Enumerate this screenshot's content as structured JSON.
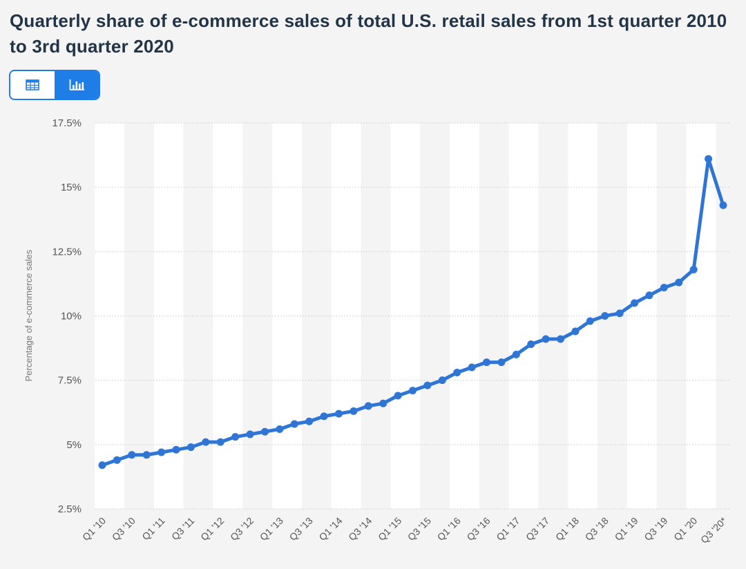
{
  "page": {
    "title": "Quarterly share of e-commerce sales of total U.S. retail sales from 1st quarter 2010 to 3rd quarter 2020"
  },
  "view_toggle": {
    "options": [
      {
        "name": "table-view",
        "icon": "table-icon",
        "active": false
      },
      {
        "name": "chart-view",
        "icon": "bar-chart-icon",
        "active": true
      }
    ]
  },
  "colors": {
    "line": "#2e75d6",
    "accent": "#1f7de8",
    "band": "#ffffff",
    "background": "#f4f4f4",
    "grid": "#c7c7c7",
    "tick_text": "#555555"
  },
  "chart_data": {
    "type": "line",
    "title": "Quarterly share of e-commerce sales of total U.S. retail sales from 1st quarter 2010 to 3rd quarter 2020",
    "xlabel": "",
    "ylabel": "Percentage of e-commerce sales",
    "ylim": [
      2.5,
      17.5
    ],
    "yticks": [
      2.5,
      5,
      7.5,
      10,
      12.5,
      15,
      17.5
    ],
    "ytick_labels": [
      "2.5%",
      "5%",
      "7.5%",
      "10%",
      "12.5%",
      "15%",
      "17.5%"
    ],
    "grid": true,
    "categories": [
      "Q1 '10",
      "Q2 '10",
      "Q3 '10",
      "Q4 '10",
      "Q1 '11",
      "Q2 '11",
      "Q3 '11",
      "Q4 '11",
      "Q1 '12",
      "Q2 '12",
      "Q3 '12",
      "Q4 '12",
      "Q1 '13",
      "Q2 '13",
      "Q3 '13",
      "Q4 '13",
      "Q1 '14",
      "Q2 '14",
      "Q3 '14",
      "Q4 '14",
      "Q1 '15",
      "Q2 '15",
      "Q3 '15",
      "Q4 '15",
      "Q1 '16",
      "Q2 '16",
      "Q3 '16",
      "Q4 '16",
      "Q1 '17",
      "Q2 '17",
      "Q3 '17",
      "Q4 '17",
      "Q1 '18",
      "Q2 '18",
      "Q3 '18",
      "Q4 '18",
      "Q1 '19",
      "Q2 '19",
      "Q3 '19",
      "Q4 '19",
      "Q1 '20",
      "Q2 '20",
      "Q3 '20*"
    ],
    "visible_tick_labels": [
      "Q1 '10",
      "Q3 '10",
      "Q1 '11",
      "Q3 '11",
      "Q1 '12",
      "Q3 '12",
      "Q1 '13",
      "Q3 '13",
      "Q1 '14",
      "Q3 '14",
      "Q1 '15",
      "Q3 '15",
      "Q1 '16",
      "Q3 '16",
      "Q1 '17",
      "Q3 '17",
      "Q1 '18",
      "Q3 '18",
      "Q1 '19",
      "Q3 '19",
      "Q1 '20",
      "Q3 '20*"
    ],
    "series": [
      {
        "name": "Percentage of e-commerce sales",
        "values": [
          4.2,
          4.4,
          4.6,
          4.6,
          4.7,
          4.8,
          4.9,
          5.1,
          5.1,
          5.3,
          5.4,
          5.5,
          5.6,
          5.8,
          5.9,
          6.1,
          6.2,
          6.3,
          6.5,
          6.6,
          6.9,
          7.1,
          7.3,
          7.5,
          7.8,
          8.0,
          8.2,
          8.2,
          8.5,
          8.9,
          9.1,
          9.1,
          9.4,
          9.8,
          10.0,
          10.1,
          10.5,
          10.8,
          11.1,
          11.3,
          11.8,
          16.1,
          14.3
        ]
      }
    ]
  }
}
